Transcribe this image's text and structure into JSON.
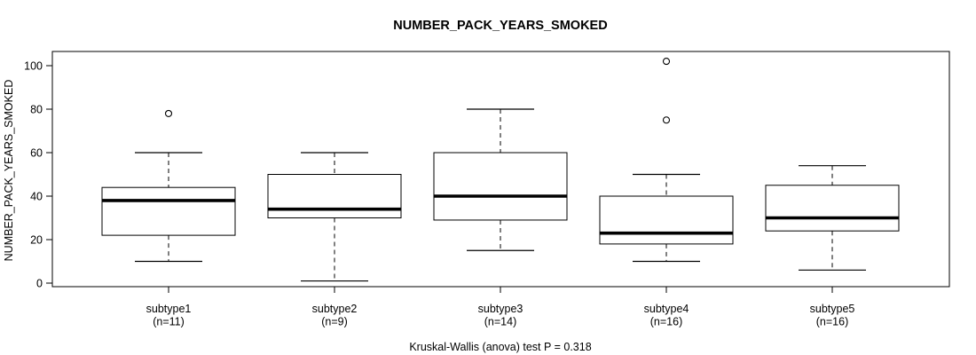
{
  "figure": {
    "title": "NUMBER_PACK_YEARS_SMOKED",
    "y_axis_label": "NUMBER_PACK_YEARS_SMOKED",
    "caption": "Kruskal-Wallis (anova) test P = 0.318"
  },
  "colors": {
    "line": "#000000",
    "median": "#000000",
    "box_fill": "#ffffff",
    "background": "#ffffff"
  },
  "chart_data": {
    "type": "boxplot",
    "title": "NUMBER_PACK_YEARS_SMOKED",
    "ylabel": "NUMBER_PACK_YEARS_SMOKED",
    "footnote": "Kruskal-Wallis (anova) test P = 0.318",
    "categories": [
      "subtype1",
      "subtype2",
      "subtype3",
      "subtype4",
      "subtype5"
    ],
    "category_sublabels": [
      "(n=11)",
      "(n=9)",
      "(n=14)",
      "(n=16)",
      "(n=16)"
    ],
    "sample_sizes": [
      11,
      9,
      14,
      16,
      16
    ],
    "yticks": [
      0,
      20,
      40,
      60,
      80,
      100
    ],
    "ylim": [
      0,
      106
    ],
    "grid": false,
    "legend": false,
    "series": [
      {
        "name": "subtype1",
        "min": 10,
        "q1": 22,
        "median": 38,
        "q3": 44,
        "max": 60,
        "outliers": [
          78
        ]
      },
      {
        "name": "subtype2",
        "min": 1,
        "q1": 30,
        "median": 34,
        "q3": 50,
        "max": 60,
        "outliers": []
      },
      {
        "name": "subtype3",
        "min": 15,
        "q1": 29,
        "median": 40,
        "q3": 60,
        "max": 80,
        "outliers": []
      },
      {
        "name": "subtype4",
        "min": 10,
        "q1": 18,
        "median": 23,
        "q3": 40,
        "max": 50,
        "outliers": [
          75,
          102
        ]
      },
      {
        "name": "subtype5",
        "min": 6,
        "q1": 24,
        "median": 30,
        "q3": 45,
        "max": 54,
        "outliers": []
      }
    ]
  }
}
